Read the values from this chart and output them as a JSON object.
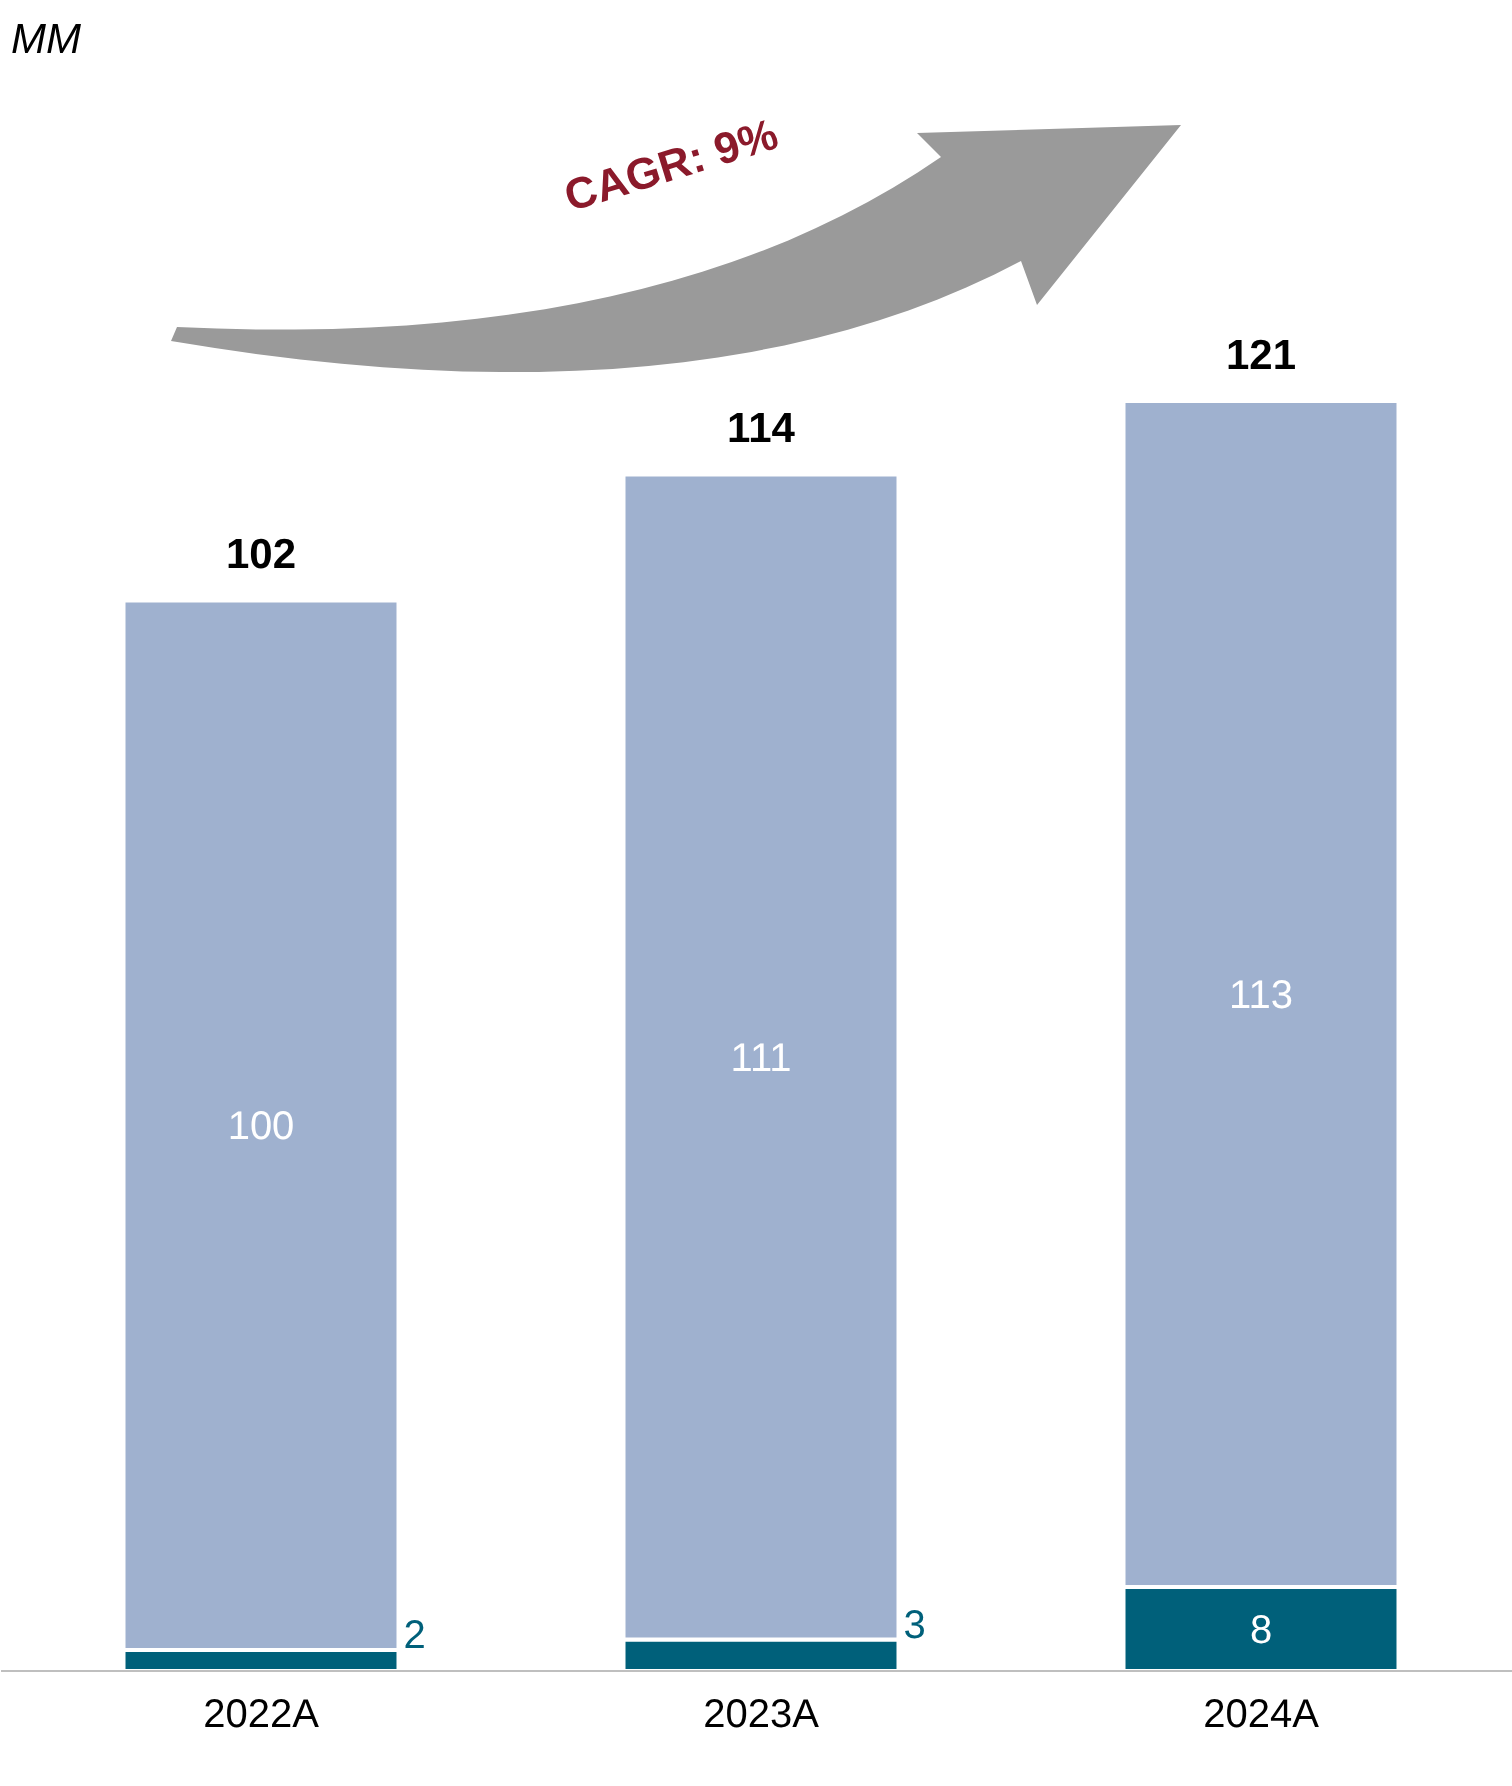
{
  "chart_data": {
    "type": "bar",
    "stacked": true,
    "categories": [
      "2022A",
      "2023A",
      "2024A"
    ],
    "series": [
      {
        "color": "#00607a",
        "values": [
          2,
          3,
          8
        ]
      },
      {
        "color": "#9fb1cf",
        "values": [
          100,
          111,
          113
        ]
      }
    ],
    "data_labels": true,
    "totals": [
      "102",
      "114",
      "121"
    ],
    "annotations": [
      "MM",
      "CAGR: 9%"
    ]
  }
}
